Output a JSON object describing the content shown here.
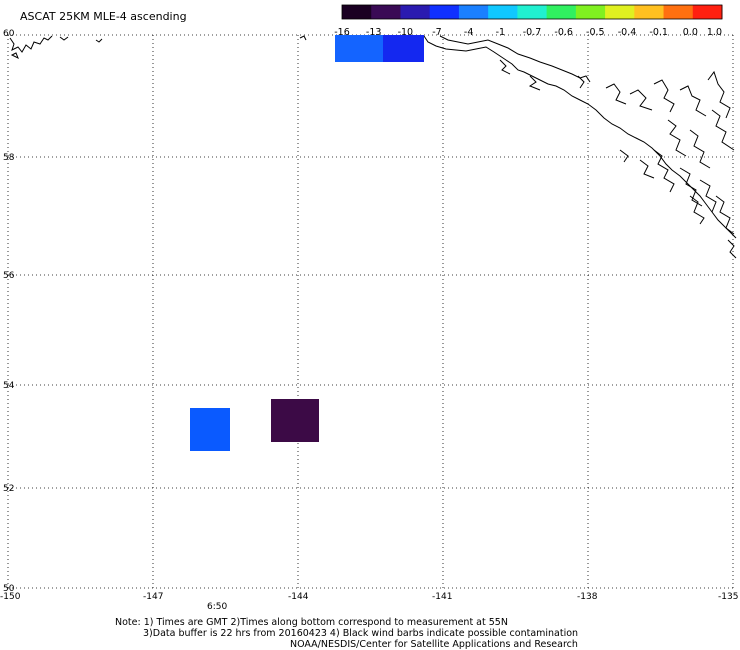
{
  "title": "ASCAT 25KM MLE-4 ascending",
  "colorbar": {
    "labels": [
      "-16",
      "-13",
      "-10",
      "-7",
      "-4",
      "-1",
      "-0.7",
      "-0.6",
      "-0.5",
      "-0.4",
      "-0.1",
      "0.0",
      "1.0"
    ],
    "colors": [
      "#1a0022",
      "#3a0a55",
      "#2a1ab0",
      "#1030ff",
      "#1a80ff",
      "#10c8ff",
      "#20f0d0",
      "#30f060",
      "#80f020",
      "#e0f020",
      "#ffc020",
      "#ff7010",
      "#ff2010"
    ]
  },
  "axes": {
    "lat_labels": [
      "60",
      "58",
      "56",
      "54",
      "52",
      "50"
    ],
    "lon_labels": [
      "-150",
      "-147",
      "-144",
      "-141",
      "-138",
      "-135"
    ]
  },
  "time_label": "6:50",
  "time_label_color": "#cc2200",
  "cells": [
    {
      "name": "cell-north-left",
      "color": "#1464ff"
    },
    {
      "name": "cell-north-right",
      "color": "#1428f0"
    },
    {
      "name": "cell-south-left",
      "color": "#0a5aff"
    },
    {
      "name": "cell-south-right",
      "color": "#3c0a46"
    }
  ],
  "notes": [
    "Note: 1) Times are GMT 2)Times along bottom correspond to measurement at 55N",
    "3)Data buffer is 22 hrs from 20160423 4) Black wind barbs indicate possible contamination",
    "NOAA/NESDIS/Center for Satellite Applications and Research"
  ]
}
